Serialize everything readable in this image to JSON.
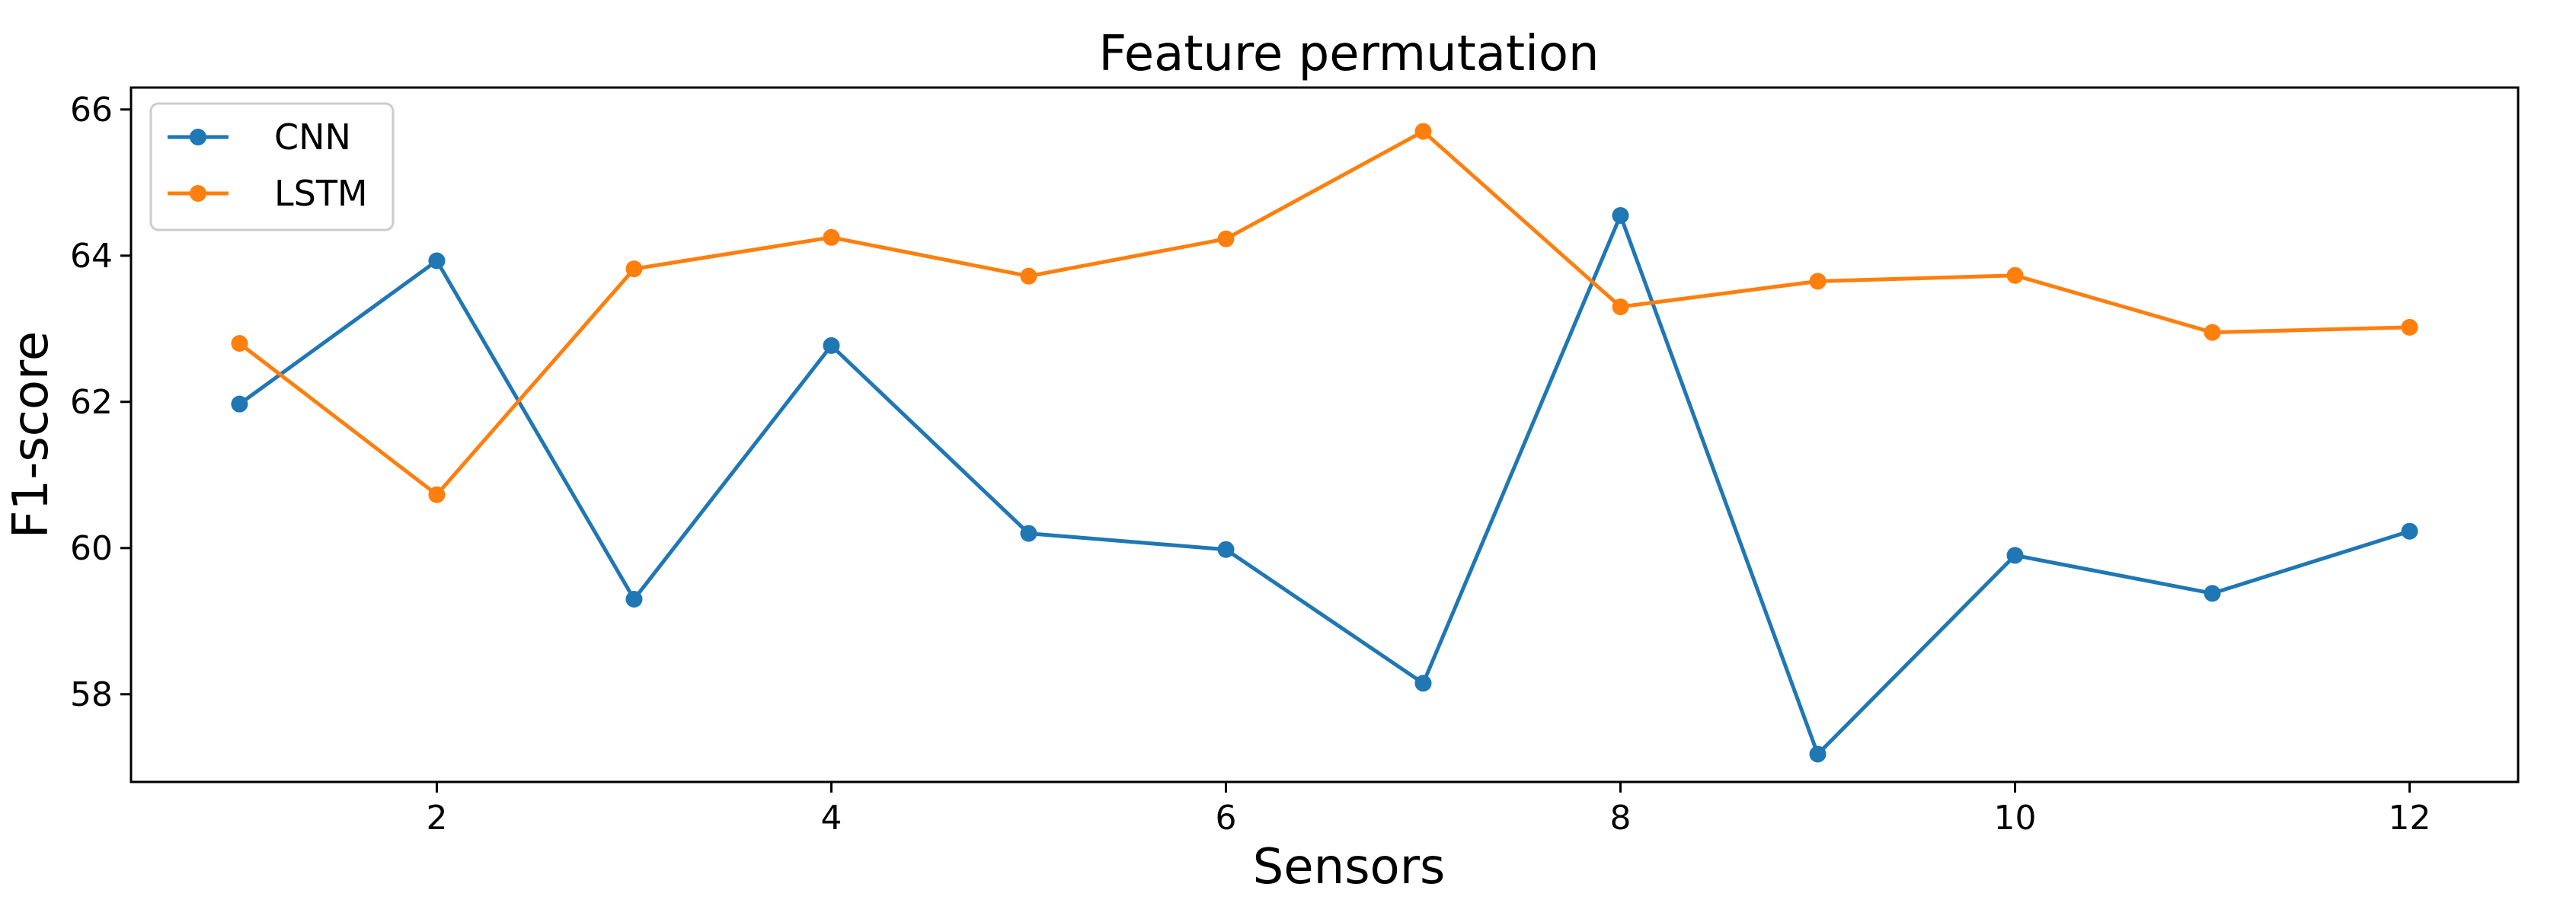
{
  "chart_data": {
    "type": "line",
    "title": "Feature permutation",
    "xlabel": "Sensors",
    "ylabel": "F1-score",
    "xlim": [
      0.45,
      12.55
    ],
    "ylim": [
      56.8,
      66.3
    ],
    "xticks": [
      2,
      4,
      6,
      8,
      10,
      12
    ],
    "yticks": [
      58,
      60,
      62,
      64,
      66
    ],
    "grid": false,
    "legend_position": "top-left",
    "x": [
      1,
      2,
      3,
      4,
      5,
      6,
      7,
      8,
      9,
      10,
      11,
      12
    ],
    "series": [
      {
        "name": "CNN",
        "color": "#1f77b4",
        "values": [
          61.97,
          63.93,
          59.3,
          62.77,
          60.2,
          59.98,
          58.15,
          64.55,
          57.18,
          59.9,
          59.38,
          60.23
        ]
      },
      {
        "name": "LSTM",
        "color": "#ff7f0e",
        "values": [
          62.8,
          60.73,
          63.82,
          64.25,
          63.72,
          64.23,
          65.7,
          63.3,
          63.65,
          63.73,
          62.95,
          63.02
        ]
      }
    ]
  }
}
